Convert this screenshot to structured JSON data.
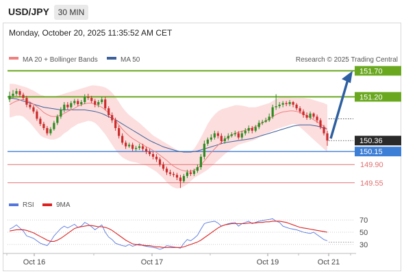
{
  "header": {
    "symbol": "USD/JPY",
    "timeframe": "30 MIN",
    "timestamp": "Monday, October 20, 2025 11:35:52 AM CET"
  },
  "credit": "Research © 2025 Trading Central",
  "colors": {
    "up": "#2e8b22",
    "down": "#cc2a2a",
    "ma20": "#f08080",
    "ma50": "#3d5f9a",
    "band_fill": "#fcdede",
    "target": "#6aa820",
    "pivot": "#3d7fd6",
    "support": "#e07070",
    "arrow": "#2e5fa0",
    "rsi": "#5577dd",
    "rsi_ma": "#dd2222"
  },
  "chart_data": [
    {
      "type": "candlestick",
      "legend": [
        {
          "name": "MA 20 + Bollinger Bands",
          "color": "#f08080"
        },
        {
          "name": "MA 50",
          "color": "#3d5f9a"
        }
      ],
      "ylim": [
        149.35,
        151.85
      ],
      "x_ticks": [
        "Oct 16",
        "Oct 17",
        "Oct 19",
        "Oct 21"
      ],
      "levels": [
        {
          "value": 151.7,
          "label": "151.70",
          "kind": "target"
        },
        {
          "value": 151.2,
          "label": "151.20",
          "kind": "target"
        },
        {
          "value": 150.15,
          "label": "150.15",
          "kind": "pivot"
        },
        {
          "value": 149.9,
          "label": "149.90",
          "kind": "support"
        },
        {
          "value": 149.55,
          "label": "149.55",
          "kind": "support"
        }
      ],
      "last_price": {
        "value": 150.36,
        "label": "150.36"
      },
      "arrow": {
        "from": 150.36,
        "to": 151.7
      },
      "close": [
        151.22,
        151.26,
        151.31,
        151.24,
        151.18,
        151.05,
        151.0,
        150.92,
        150.78,
        150.68,
        150.6,
        150.5,
        150.58,
        150.7,
        150.82,
        150.95,
        151.05,
        151.0,
        151.08,
        151.12,
        151.06,
        151.1,
        151.2,
        151.18,
        151.12,
        151.05,
        151.1,
        151.15,
        150.98,
        150.85,
        150.75,
        150.6,
        150.45,
        150.32,
        150.25,
        150.28,
        150.2,
        150.22,
        150.25,
        150.2,
        150.15,
        150.1,
        150.05,
        150.0,
        149.9,
        149.82,
        149.75,
        149.72,
        149.7,
        149.65,
        149.58,
        149.68,
        149.75,
        149.72,
        149.78,
        149.85,
        150.05,
        150.3,
        150.38,
        150.42,
        150.5,
        150.45,
        150.35,
        150.4,
        150.45,
        150.48,
        150.5,
        150.42,
        150.5,
        150.55,
        150.6,
        150.55,
        150.62,
        150.7,
        150.72,
        150.75,
        150.82,
        151.0,
        151.02,
        151.05,
        151.08,
        151.06,
        151.1,
        151.05,
        150.98,
        150.92,
        150.85,
        150.8,
        150.88,
        150.82,
        150.75,
        150.62,
        150.5,
        150.36
      ],
      "open": [
        151.15,
        151.22,
        151.26,
        151.31,
        151.24,
        151.18,
        151.05,
        151.0,
        150.92,
        150.78,
        150.68,
        150.6,
        150.5,
        150.58,
        150.7,
        150.82,
        150.95,
        151.05,
        151.0,
        151.08,
        151.12,
        151.06,
        151.1,
        151.2,
        151.18,
        151.12,
        151.05,
        151.1,
        151.15,
        150.98,
        150.85,
        150.75,
        150.6,
        150.45,
        150.32,
        150.25,
        150.28,
        150.2,
        150.22,
        150.25,
        150.2,
        150.15,
        150.1,
        150.05,
        150.0,
        149.9,
        149.82,
        149.75,
        149.72,
        149.7,
        149.65,
        149.58,
        149.68,
        149.75,
        149.72,
        149.78,
        149.85,
        150.05,
        150.3,
        150.38,
        150.42,
        150.5,
        150.45,
        150.35,
        150.4,
        150.45,
        150.48,
        150.5,
        150.42,
        150.5,
        150.55,
        150.6,
        150.55,
        150.62,
        150.7,
        150.72,
        150.75,
        150.82,
        151.0,
        151.02,
        151.05,
        151.08,
        151.06,
        151.1,
        151.05,
        150.98,
        150.92,
        150.85,
        150.8,
        150.88,
        150.82,
        150.75,
        150.62,
        150.5
      ],
      "high": [
        151.3,
        151.33,
        151.36,
        151.35,
        151.28,
        151.22,
        151.1,
        151.04,
        150.96,
        150.82,
        150.72,
        150.64,
        150.62,
        150.74,
        150.86,
        151.0,
        151.1,
        151.1,
        151.12,
        151.16,
        151.16,
        151.14,
        151.25,
        151.26,
        151.22,
        151.16,
        151.14,
        151.2,
        151.2,
        151.02,
        150.9,
        150.8,
        150.65,
        150.5,
        150.36,
        150.32,
        150.32,
        150.26,
        150.3,
        150.3,
        150.24,
        150.2,
        150.14,
        150.1,
        150.04,
        149.95,
        149.86,
        149.8,
        149.76,
        149.74,
        149.7,
        149.72,
        149.8,
        149.8,
        149.82,
        149.9,
        150.1,
        150.36,
        150.42,
        150.48,
        150.55,
        150.54,
        150.5,
        150.45,
        150.5,
        150.52,
        150.55,
        150.54,
        150.55,
        150.6,
        150.65,
        150.64,
        150.66,
        150.75,
        150.76,
        150.8,
        150.88,
        151.05,
        151.25,
        151.1,
        151.12,
        151.12,
        151.14,
        151.12,
        151.08,
        151.02,
        150.96,
        150.9,
        150.92,
        150.9,
        150.86,
        150.79,
        150.66,
        150.55
      ],
      "low": [
        151.1,
        151.18,
        151.22,
        151.2,
        151.14,
        151.0,
        150.96,
        150.88,
        150.74,
        150.64,
        150.56,
        150.46,
        150.46,
        150.55,
        150.66,
        150.78,
        150.9,
        150.96,
        150.96,
        151.04,
        151.02,
        151.02,
        151.06,
        151.14,
        151.08,
        151.0,
        151.0,
        151.06,
        150.94,
        150.8,
        150.7,
        150.55,
        150.4,
        150.28,
        150.2,
        150.22,
        150.16,
        150.16,
        150.18,
        150.16,
        150.1,
        150.06,
        150.0,
        149.95,
        149.86,
        149.78,
        149.7,
        149.68,
        149.66,
        149.6,
        149.45,
        149.55,
        149.64,
        149.68,
        149.68,
        149.74,
        149.8,
        150.0,
        150.26,
        150.34,
        150.38,
        150.4,
        150.3,
        150.3,
        150.36,
        150.42,
        150.44,
        150.38,
        150.38,
        150.46,
        150.5,
        150.5,
        150.52,
        150.58,
        150.66,
        150.7,
        150.72,
        150.78,
        150.95,
        150.98,
        151.0,
        151.02,
        151.02,
        151.0,
        150.94,
        150.88,
        150.8,
        150.76,
        150.76,
        150.78,
        150.7,
        150.58,
        150.46,
        150.26
      ],
      "ma20": [
        151.05,
        151.09,
        151.12,
        151.14,
        151.15,
        151.13,
        151.1,
        151.06,
        151.01,
        150.96,
        150.9,
        150.86,
        150.83,
        150.82,
        150.83,
        150.85,
        150.88,
        150.92,
        150.95,
        150.98,
        151.02,
        151.05,
        151.07,
        151.08,
        151.08,
        151.06,
        151.03,
        151.0,
        150.95,
        150.89,
        150.82,
        150.74,
        150.66,
        150.58,
        150.51,
        150.45,
        150.4,
        150.36,
        150.32,
        150.28,
        150.24,
        150.21,
        150.17,
        150.13,
        150.08,
        150.03,
        149.98,
        149.92,
        149.87,
        149.83,
        149.8,
        149.78,
        149.77,
        149.77,
        149.79,
        149.83,
        149.89,
        149.97,
        150.05,
        150.13,
        150.2,
        150.27,
        150.33,
        150.38,
        150.43,
        150.47,
        150.5,
        150.52,
        150.54,
        150.56,
        150.58,
        150.6,
        150.63,
        150.66,
        150.7,
        150.74,
        150.78,
        150.82,
        150.86,
        150.89,
        150.91,
        150.92,
        150.93,
        150.93,
        150.92,
        150.9,
        150.87,
        150.84,
        150.8,
        150.76,
        150.72,
        150.68,
        150.63,
        150.58
      ],
      "ma50": [
        151.18,
        151.17,
        151.16,
        151.14,
        151.12,
        151.1,
        151.08,
        151.06,
        151.04,
        151.02,
        151.0,
        150.99,
        150.98,
        150.97,
        150.96,
        150.95,
        150.95,
        150.95,
        150.95,
        150.95,
        150.95,
        150.95,
        150.95,
        150.94,
        150.93,
        150.92,
        150.9,
        150.88,
        150.85,
        150.82,
        150.79,
        150.76,
        150.72,
        150.68,
        150.64,
        150.6,
        150.56,
        150.52,
        150.48,
        150.44,
        150.4,
        150.36,
        150.33,
        150.3,
        150.27,
        150.24,
        150.22,
        150.2,
        150.18,
        150.16,
        150.15,
        150.14,
        150.14,
        150.14,
        150.15,
        150.16,
        150.18,
        150.2,
        150.22,
        150.24,
        150.26,
        150.28,
        150.3,
        150.32,
        150.33,
        150.34,
        150.35,
        150.36,
        150.37,
        150.38,
        150.39,
        150.4,
        150.42,
        150.44,
        150.46,
        150.48,
        150.5,
        150.52,
        150.54,
        150.56,
        150.58,
        150.6,
        150.62,
        150.64,
        150.65,
        150.66,
        150.66,
        150.66,
        150.66,
        150.65,
        150.64,
        150.62,
        150.6,
        150.58
      ],
      "band_upper": [
        151.45,
        151.45,
        151.44,
        151.42,
        151.4,
        151.38,
        151.35,
        151.32,
        151.28,
        151.24,
        151.22,
        151.2,
        151.2,
        151.21,
        151.22,
        151.24,
        151.26,
        151.28,
        151.3,
        151.32,
        151.34,
        151.36,
        151.38,
        151.4,
        151.42,
        151.42,
        151.41,
        151.4,
        151.38,
        151.34,
        151.28,
        151.2,
        151.1,
        151.0,
        150.92,
        150.85,
        150.8,
        150.75,
        150.7,
        150.64,
        150.58,
        150.52,
        150.46,
        150.42,
        150.38,
        150.34,
        150.3,
        150.26,
        150.22,
        150.18,
        150.15,
        150.14,
        150.14,
        150.15,
        150.2,
        150.3,
        150.42,
        150.55,
        150.68,
        150.78,
        150.86,
        150.92,
        150.96,
        150.98,
        151.0,
        151.02,
        151.04,
        151.04,
        151.03,
        151.02,
        151.0,
        151.0,
        151.0,
        151.02,
        151.04,
        151.06,
        151.08,
        151.12,
        151.16,
        151.19,
        151.2,
        151.2,
        151.19,
        151.18,
        151.18,
        151.18,
        151.18,
        151.17,
        151.16,
        151.14,
        151.12,
        151.1,
        151.08,
        151.05
      ],
      "band_lower": [
        150.8,
        150.82,
        150.84,
        150.84,
        150.82,
        150.76,
        150.7,
        150.62,
        150.54,
        150.46,
        150.42,
        150.4,
        150.38,
        150.38,
        150.4,
        150.44,
        150.5,
        150.54,
        150.6,
        150.64,
        150.68,
        150.7,
        150.72,
        150.74,
        150.73,
        150.7,
        150.64,
        150.56,
        150.48,
        150.38,
        150.28,
        150.18,
        150.1,
        150.04,
        150.0,
        149.97,
        149.95,
        149.94,
        149.92,
        149.9,
        149.88,
        149.84,
        149.8,
        149.76,
        149.7,
        149.64,
        149.56,
        149.5,
        149.46,
        149.44,
        149.45,
        149.48,
        149.52,
        149.58,
        149.64,
        149.68,
        149.72,
        149.76,
        149.8,
        149.86,
        149.92,
        149.98,
        150.04,
        150.1,
        150.15,
        150.2,
        150.24,
        150.28,
        150.3,
        150.32,
        150.34,
        150.36,
        150.38,
        150.42,
        150.46,
        150.5,
        150.52,
        150.55,
        150.58,
        150.6,
        150.62,
        150.64,
        150.66,
        150.68,
        150.66,
        150.62,
        150.56,
        150.5,
        150.44,
        150.38,
        150.32,
        150.26,
        150.2,
        150.14
      ]
    },
    {
      "type": "line",
      "legend": [
        {
          "name": "RSI",
          "color": "#5577dd"
        },
        {
          "name": "9MA",
          "color": "#dd2222"
        }
      ],
      "ylim": [
        22,
        78
      ],
      "y_ticks": [
        70,
        50,
        30
      ],
      "series": [
        {
          "name": "RSI",
          "values": [
            55,
            58,
            62,
            57,
            52,
            44,
            42,
            40,
            36,
            32,
            30,
            28,
            35,
            44,
            50,
            56,
            60,
            57,
            60,
            63,
            58,
            60,
            66,
            63,
            59,
            54,
            58,
            62,
            50,
            42,
            38,
            32,
            30,
            28,
            27,
            30,
            27,
            29,
            31,
            28,
            27,
            26,
            25,
            24,
            22,
            24,
            28,
            27,
            26,
            25,
            24,
            32,
            38,
            36,
            40,
            45,
            55,
            64,
            66,
            67,
            68,
            65,
            60,
            62,
            64,
            65,
            66,
            60,
            64,
            66,
            68,
            64,
            66,
            68,
            69,
            70,
            71,
            72,
            68,
            66,
            60,
            58,
            56,
            55,
            54,
            52,
            50,
            49,
            48,
            50,
            46,
            42,
            38,
            36
          ]
        },
        {
          "name": "9MA",
          "values": [
            52,
            53,
            54,
            54,
            54,
            53,
            51,
            49,
            46,
            43,
            40,
            37,
            35,
            35,
            37,
            40,
            44,
            48,
            52,
            56,
            58,
            59,
            60,
            61,
            61,
            60,
            59,
            59,
            58,
            56,
            53,
            49,
            45,
            41,
            37,
            34,
            31,
            30,
            29,
            29,
            28,
            28,
            27,
            26,
            26,
            25,
            25,
            25,
            25,
            25,
            25,
            26,
            28,
            30,
            32,
            34,
            37,
            41,
            45,
            49,
            53,
            57,
            60,
            62,
            63,
            64,
            64,
            64,
            64,
            64,
            65,
            65,
            65,
            66,
            66,
            67,
            67,
            68,
            68,
            68,
            67,
            66,
            64,
            62,
            60,
            58,
            57,
            56,
            55,
            54,
            53,
            52,
            51,
            50
          ]
        }
      ]
    }
  ]
}
